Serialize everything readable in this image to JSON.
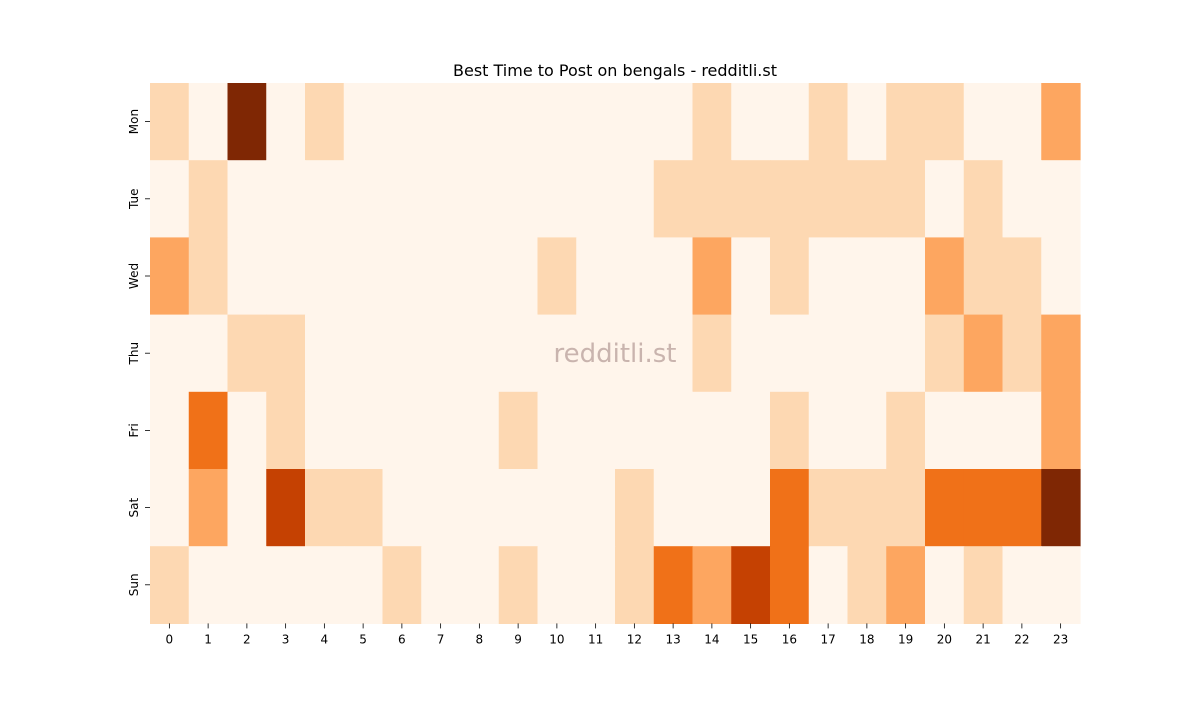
{
  "chart_data": {
    "type": "heatmap",
    "title": "Best Time to Post on bengals - redditli.st",
    "watermark": "redditli.st",
    "x": [
      "0",
      "1",
      "2",
      "3",
      "4",
      "5",
      "6",
      "7",
      "8",
      "9",
      "10",
      "11",
      "12",
      "13",
      "14",
      "15",
      "16",
      "17",
      "18",
      "19",
      "20",
      "21",
      "22",
      "23"
    ],
    "y": [
      "Mon",
      "Tue",
      "Wed",
      "Thu",
      "Fri",
      "Sat",
      "Sun"
    ],
    "values": [
      [
        1,
        0,
        5,
        0,
        1,
        0,
        0,
        0,
        0,
        0,
        0,
        0,
        0,
        0,
        1,
        0,
        0,
        1,
        0,
        1,
        1,
        0,
        0,
        2
      ],
      [
        0,
        1,
        0,
        0,
        0,
        0,
        0,
        0,
        0,
        0,
        0,
        0,
        0,
        1,
        1,
        1,
        1,
        1,
        1,
        1,
        0,
        1,
        0,
        0
      ],
      [
        2,
        1,
        0,
        0,
        0,
        0,
        0,
        0,
        0,
        0,
        1,
        0,
        0,
        0,
        2,
        0,
        1,
        0,
        0,
        0,
        2,
        1,
        1,
        0
      ],
      [
        0,
        0,
        1,
        1,
        0,
        0,
        0,
        0,
        0,
        0,
        0,
        0,
        0,
        0,
        1,
        0,
        0,
        0,
        0,
        0,
        1,
        2,
        1,
        2
      ],
      [
        0,
        3,
        0,
        1,
        0,
        0,
        0,
        0,
        0,
        1,
        0,
        0,
        0,
        0,
        0,
        0,
        1,
        0,
        0,
        1,
        0,
        0,
        0,
        2
      ],
      [
        0,
        2,
        0,
        4,
        1,
        1,
        0,
        0,
        0,
        0,
        0,
        0,
        1,
        0,
        0,
        0,
        3,
        1,
        1,
        1,
        3,
        3,
        3,
        5
      ],
      [
        1,
        0,
        0,
        0,
        0,
        0,
        1,
        0,
        0,
        1,
        0,
        0,
        1,
        3,
        2,
        4,
        3,
        0,
        1,
        2,
        0,
        1,
        0,
        0
      ]
    ],
    "colorscale": [
      "#fff5eb",
      "#fdd8b2",
      "#fda660",
      "#f07118",
      "#c54102",
      "#7f2704"
    ],
    "grid": false,
    "legend": "none"
  }
}
